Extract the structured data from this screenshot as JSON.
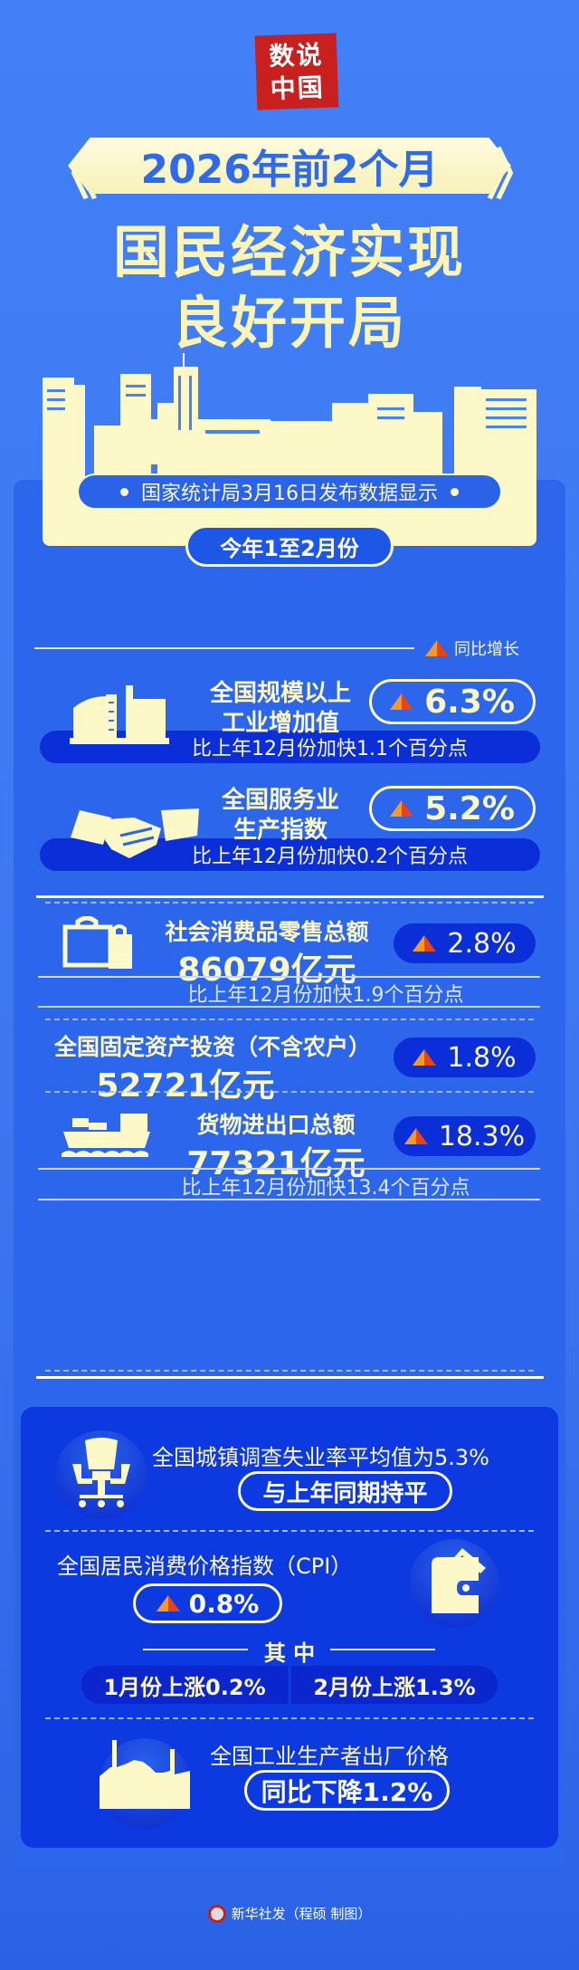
{
  "stamp": {
    "line1": "数说",
    "line2": "中国"
  },
  "header": {
    "banner": "2026年前2个月",
    "title_line1": "国民经济实现",
    "title_line2": "良好开局"
  },
  "source": "国家统计局3月16日发布数据显示",
  "period": "今年1至2月份",
  "legend": {
    "label": "同比增长",
    "icon": "up-triangle-icon"
  },
  "colors": {
    "background": "#3f7cf5",
    "cream": "#fdf8c8",
    "dark_blue": "#0a2ed8",
    "arrow_orange": "#f59a28",
    "arrow_red": "#e5431a",
    "stamp_red": "#c8201f"
  },
  "indicators": [
    {
      "name_line1": "全国规模以上",
      "name_line2": "工业增加值",
      "value": "6.3%",
      "note": "比上年12月份加快1.1个百分点",
      "icon": "factory-icon"
    },
    {
      "name_line1": "全国服务业",
      "name_line2": "生产指数",
      "value": "5.2%",
      "note": "比上年12月份加快0.2个百分点",
      "icon": "handshake-icon"
    }
  ],
  "totals": [
    {
      "name": "社会消费品零售总额",
      "amount": "86079亿元",
      "growth": "2.8%",
      "note": "比上年12月份加快1.9个百分点",
      "icon": "shopping-bag-icon"
    },
    {
      "name": "全国固定资产投资（不含农户）",
      "amount": "52721亿元",
      "growth": "1.8%"
    },
    {
      "name": "货物进出口总额",
      "amount": "77321亿元",
      "growth": "18.3%",
      "note": "比上年12月份加快13.4个百分点",
      "icon": "cargo-ship-icon"
    }
  ],
  "unemployment": {
    "text": "全国城镇调查失业率平均值为5.3%",
    "badge": "与上年同期持平",
    "icon": "office-chair-icon"
  },
  "cpi": {
    "text": "全国居民消费价格指数（CPI）",
    "value": "0.8%",
    "among": "其 中",
    "jan": "1月份上涨0.2%",
    "feb": "2月份上涨1.3%",
    "icon": "wallet-icon"
  },
  "ppi": {
    "text": "全国工业生产者出厂价格",
    "badge": "同比下降1.2%",
    "icon": "factory-chimney-icon"
  },
  "footer": "新华社发（程硕 制图）"
}
